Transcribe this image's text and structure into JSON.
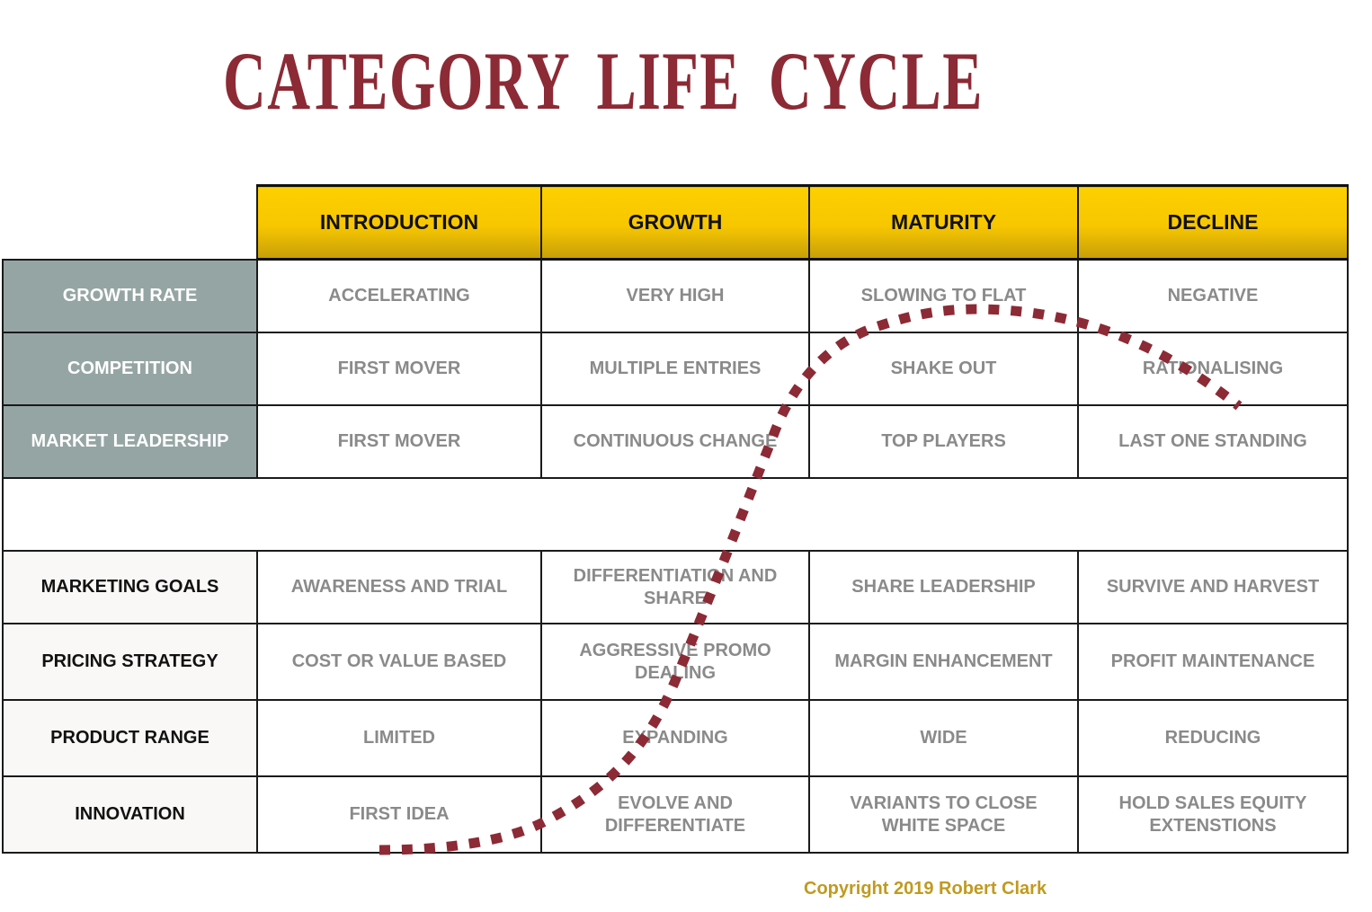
{
  "title": "CATEGORY LIFE CYCLE",
  "stages": [
    "INTRODUCTION",
    "GROWTH",
    "MATURITY",
    "DECLINE"
  ],
  "market_rows": [
    {
      "label": "GROWTH RATE",
      "cells": [
        "ACCELERATING",
        "VERY HIGH",
        "SLOWING TO FLAT",
        "NEGATIVE"
      ]
    },
    {
      "label": "COMPETITION",
      "cells": [
        "FIRST MOVER",
        "MULTIPLE ENTRIES",
        "SHAKE OUT",
        "RATIONALISING"
      ]
    },
    {
      "label": "MARKET LEADERSHIP",
      "cells": [
        "FIRST MOVER",
        "CONTINUOUS CHANGE",
        "TOP PLAYERS",
        "LAST ONE STANDING"
      ]
    }
  ],
  "strategy_rows": [
    {
      "label": "MARKETING GOALS",
      "cells": [
        "AWARENESS AND TRIAL",
        "DIFFERENTIATION AND SHARE",
        "SHARE LEADERSHIP",
        "SURVIVE AND HARVEST"
      ]
    },
    {
      "label": "PRICING STRATEGY",
      "cells": [
        "COST OR VALUE BASED",
        "AGGRESSIVE PROMO DEALING",
        "MARGIN ENHANCEMENT",
        "PROFIT MAINTENANCE"
      ]
    },
    {
      "label": "PRODUCT RANGE",
      "cells": [
        "LIMITED",
        "EXPANDING",
        "WIDE",
        "REDUCING"
      ]
    },
    {
      "label": "INNOVATION",
      "cells": [
        "FIRST IDEA",
        "EVOLVE AND DIFFERENTIATE",
        "VARIANTS TO CLOSE WHITE SPACE",
        "HOLD SALES EQUITY EXTENSTIONS"
      ]
    }
  ],
  "copyright": "Copyright 2019 Robert Clark",
  "colors": {
    "title": "#8c2a35",
    "curve": "#8c2a35",
    "stage_header": "#f7c600",
    "label_grey": "#95a5a3",
    "cell_text": "#8a8a8a",
    "copyright": "#c19a1f"
  }
}
